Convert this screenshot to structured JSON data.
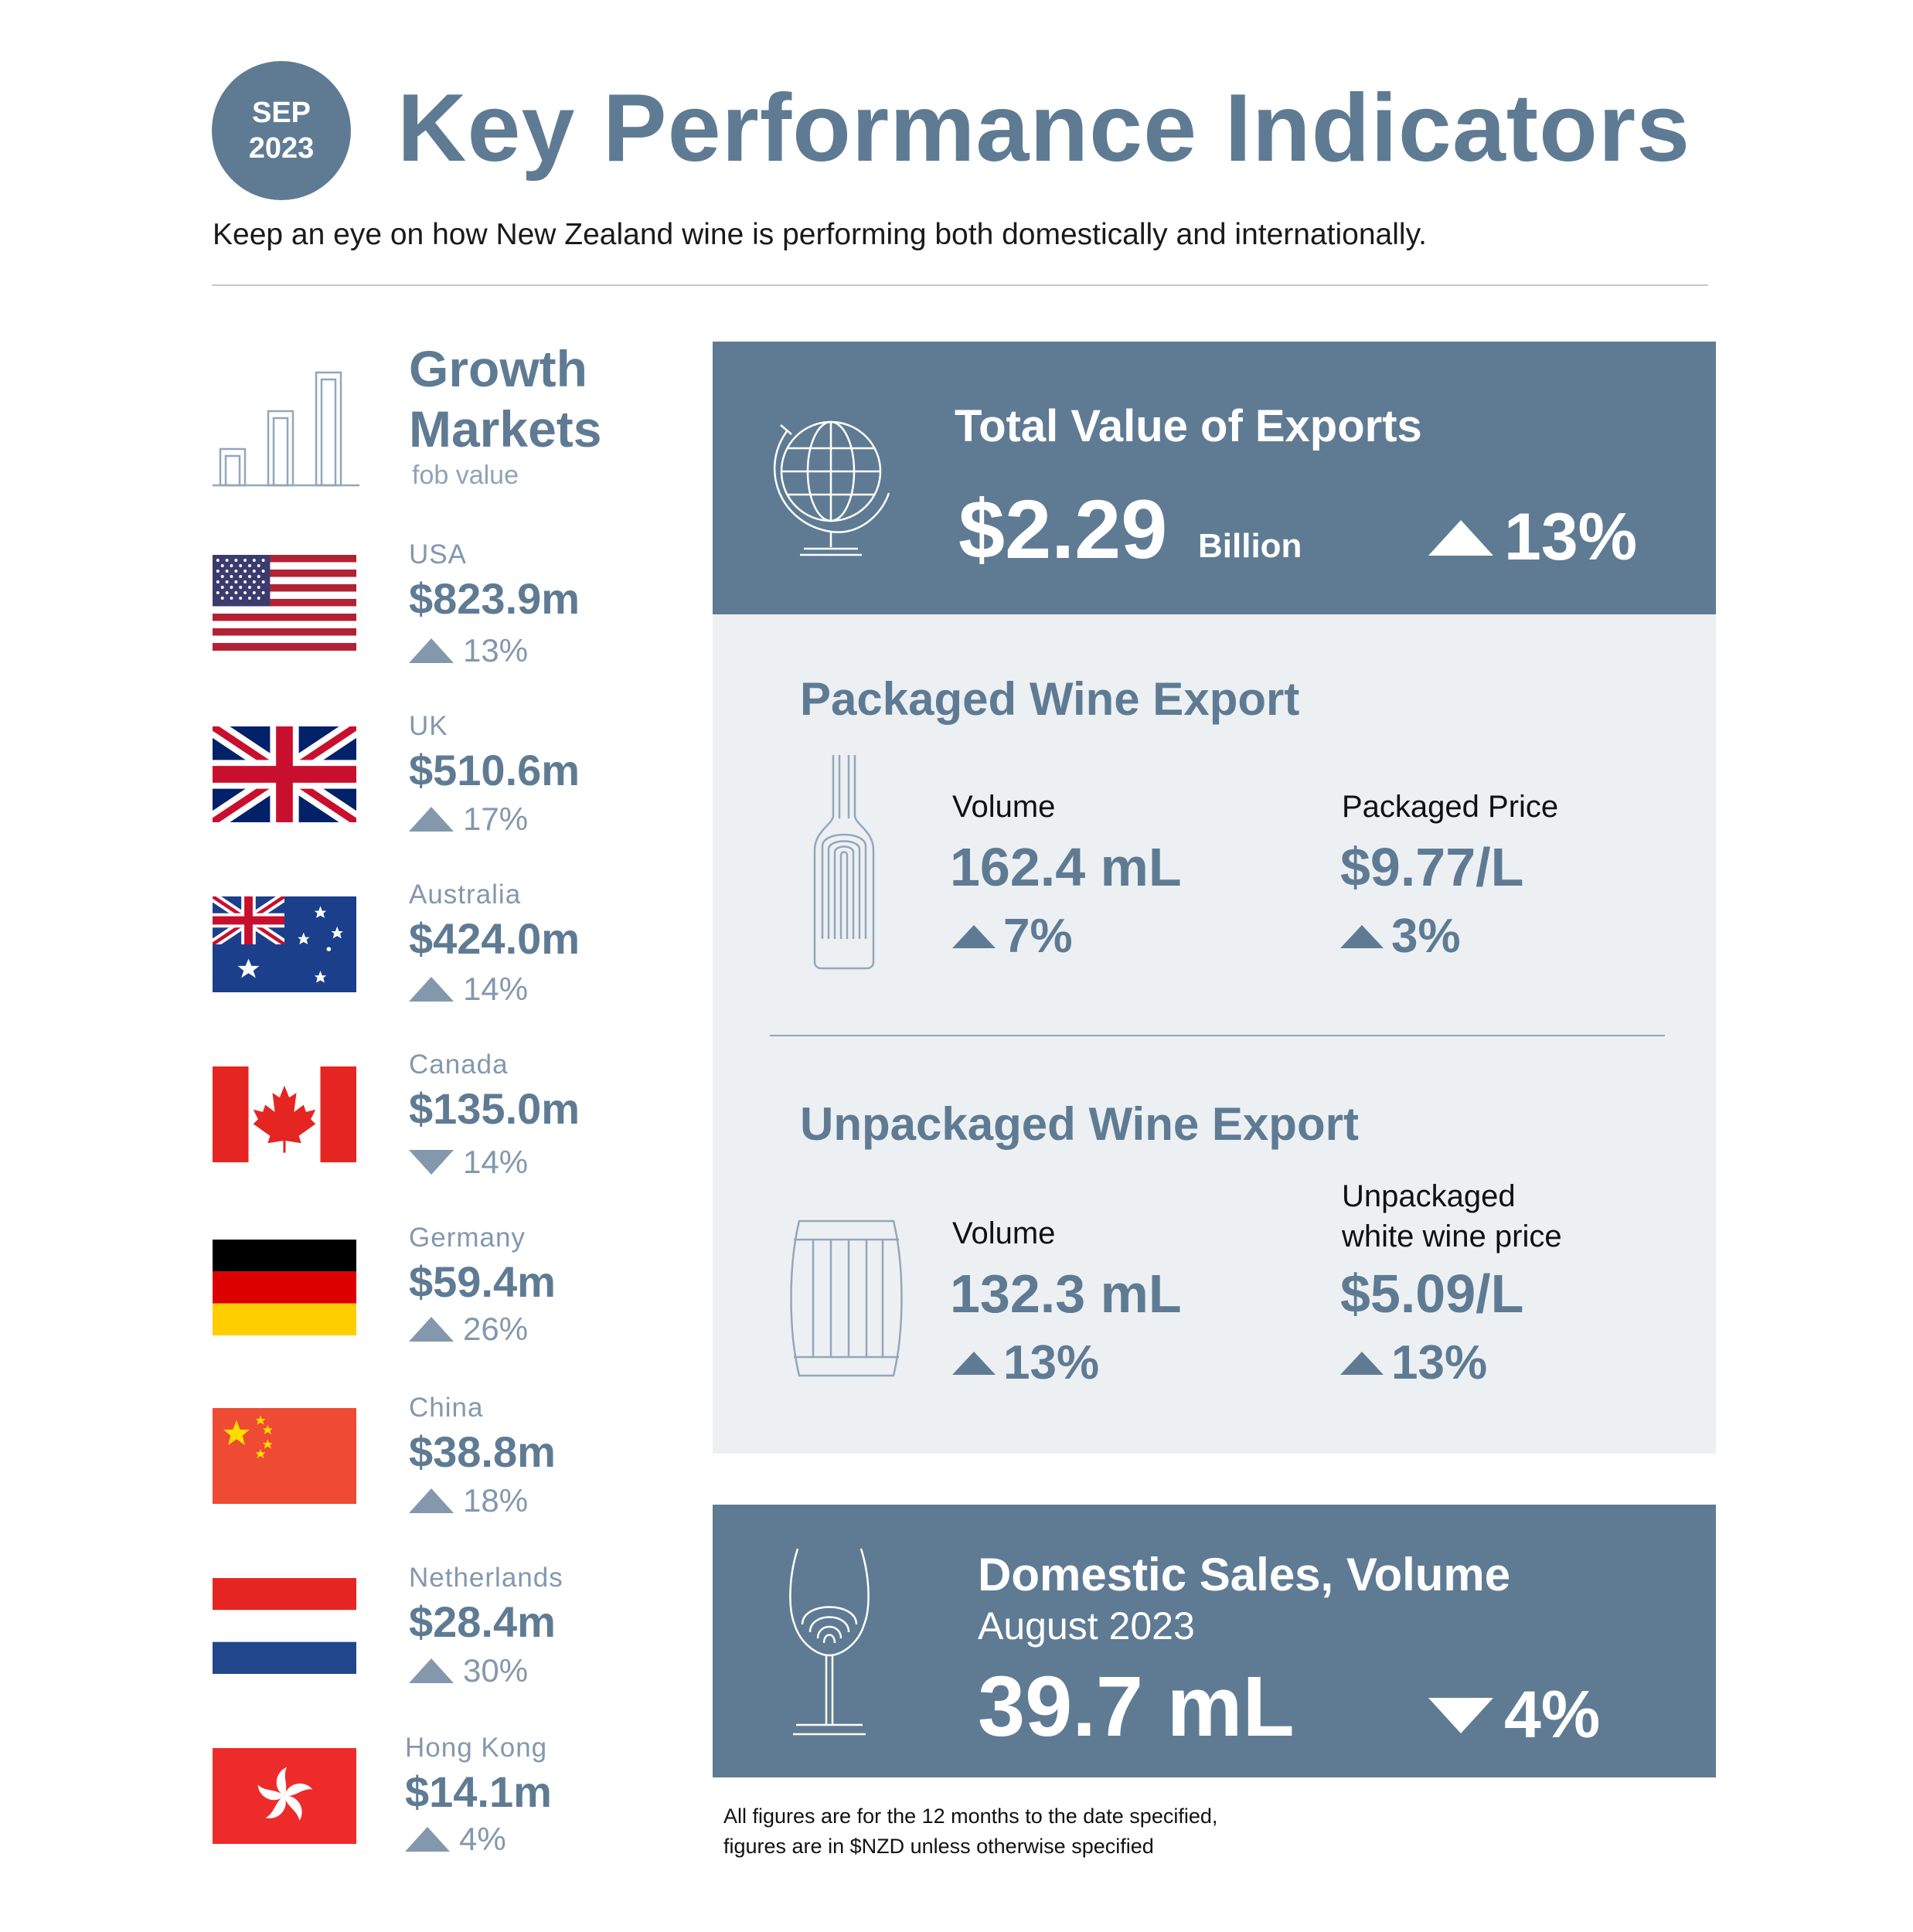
{
  "header": {
    "badge_month": "SEP",
    "badge_year": "2023",
    "title": "Key Performance Indicators",
    "subtitle": "Keep an eye on how New Zealand wine is performing both domestically and internationally."
  },
  "growth_markets": {
    "title_line1": "Growth",
    "title_line2": "Markets",
    "subtitle": "fob value",
    "markets": [
      {
        "name": "USA",
        "value": "$823.9m",
        "change": "13%",
        "direction": "up",
        "flag": "us-flag"
      },
      {
        "name": "UK",
        "value": "$510.6m",
        "change": "17%",
        "direction": "up",
        "flag": "uk-flag"
      },
      {
        "name": "Australia",
        "value": "$424.0m",
        "change": "14%",
        "direction": "up",
        "flag": "australia-flag"
      },
      {
        "name": "Canada",
        "value": "$135.0m",
        "change": "14%",
        "direction": "down",
        "flag": "canada-flag"
      },
      {
        "name": "Germany",
        "value": "$59.4m",
        "change": "26%",
        "direction": "up",
        "flag": "germany-flag"
      },
      {
        "name": "China",
        "value": "$38.8m",
        "change": "18%",
        "direction": "up",
        "flag": "china-flag"
      },
      {
        "name": "Netherlands",
        "value": "$28.4m",
        "change": "30%",
        "direction": "up",
        "flag": "netherlands-flag"
      },
      {
        "name": "Hong Kong",
        "value": "$14.1m",
        "change": "4%",
        "direction": "up",
        "flag": "hong-kong-flag"
      }
    ]
  },
  "total_exports": {
    "label": "Total Value of Exports",
    "value": "$2.29",
    "unit": "Billion",
    "change": "13%",
    "direction": "up",
    "icon": "globe-icon"
  },
  "packaged": {
    "title": "Packaged Wine Export",
    "icon": "wine-bottle-icon",
    "volume_label": "Volume",
    "volume_value": "162.4 mL",
    "volume_change": "7%",
    "price_label": "Packaged Price",
    "price_value": "$9.77/L",
    "price_change": "3%"
  },
  "unpackaged": {
    "title": "Unpackaged Wine Export",
    "icon": "barrel-icon",
    "volume_label": "Volume",
    "volume_value": "132.3 mL",
    "volume_change": "13%",
    "price_label_line1": "Unpackaged",
    "price_label_line2": "white wine price",
    "price_value": "$5.09/L",
    "price_change": "13%"
  },
  "domestic": {
    "title": "Domestic Sales, Volume",
    "period": "August 2023",
    "value": "39.7 mL",
    "change": "4%",
    "direction": "down",
    "icon": "wine-glass-icon"
  },
  "footnote": {
    "line1": "All figures are for the 12 months to the date specified,",
    "line2": "figures are in $NZD unless otherwise specified"
  },
  "colors": {
    "primary": "#5f7b94",
    "light_panel": "#ecf0f3",
    "muted": "#8398ad"
  }
}
